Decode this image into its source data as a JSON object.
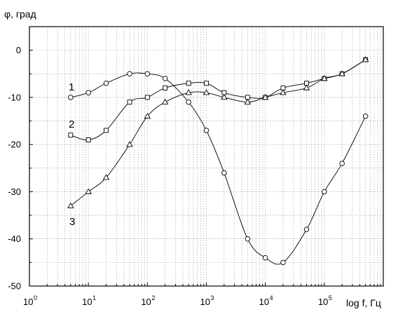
{
  "chart_data": {
    "type": "line",
    "ylabel": "φ, град",
    "xlabel": "log f, Гц",
    "x_scale": "log",
    "xlim": [
      1,
      1000000
    ],
    "ylim": [
      -50,
      5
    ],
    "grid": true,
    "x_ticks": [
      {
        "base": "10",
        "exp": "0"
      },
      {
        "base": "10",
        "exp": "1"
      },
      {
        "base": "10",
        "exp": "2"
      },
      {
        "base": "10",
        "exp": "3"
      },
      {
        "base": "10",
        "exp": "4"
      },
      {
        "base": "10",
        "exp": "5"
      }
    ],
    "y_ticks": [
      "0",
      "-10",
      "-20",
      "-30",
      "-40",
      "-50"
    ],
    "series": [
      {
        "name": "1",
        "marker": "circle",
        "x": [
          5,
          10,
          20,
          50,
          100,
          200,
          500,
          1000,
          2000,
          5000,
          10000,
          20000,
          50000,
          100000,
          200000,
          500000
        ],
        "y": [
          -10,
          -9,
          -7,
          -5,
          -5,
          -6,
          -11,
          -17,
          -26,
          -40,
          -44,
          -45,
          -38,
          -30,
          -24,
          -14
        ]
      },
      {
        "name": "2",
        "marker": "square",
        "x": [
          5,
          10,
          20,
          50,
          100,
          200,
          500,
          1000,
          2000,
          5000,
          10000,
          20000,
          50000,
          100000,
          200000,
          500000
        ],
        "y": [
          -18,
          -19,
          -17,
          -11,
          -10,
          -8,
          -7,
          -7,
          -9,
          -10,
          -10,
          -8,
          -7,
          -6,
          -5,
          -2
        ]
      },
      {
        "name": "3",
        "marker": "triangle",
        "x": [
          5,
          10,
          20,
          50,
          100,
          200,
          500,
          1000,
          2000,
          5000,
          10000,
          20000,
          50000,
          100000,
          200000,
          500000
        ],
        "y": [
          -33,
          -30,
          -27,
          -20,
          -14,
          -11,
          -9,
          -9,
          -10,
          -11,
          -10,
          -9,
          -8,
          -6,
          -5,
          -2
        ]
      }
    ]
  }
}
